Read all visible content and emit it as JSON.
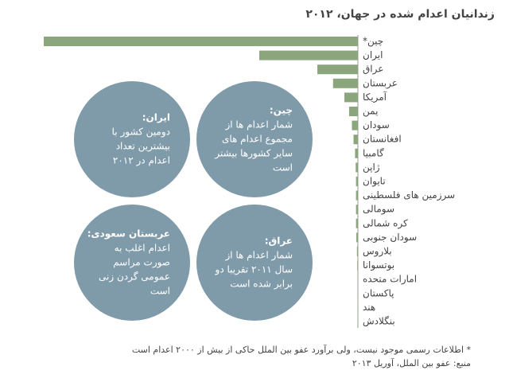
{
  "chart_data": {
    "type": "bar",
    "orientation": "horizontal",
    "title": "زندانیان اعدام شده در جهان، ۲۰۱۲",
    "categories": [
      "چین*",
      "ایران",
      "عراق",
      "عربستان",
      "آمریکا",
      "یمن",
      "سودان",
      "افغانستان",
      "گامبیا",
      "ژاپن",
      "تایوان",
      "سرزمین های فلسطینی",
      "سومالی",
      "کره شمالی",
      "سودان جنوبی",
      "بلاروس",
      "بوتسوانا",
      "امارات متحده",
      "پاکستان",
      "هند",
      "بنگلادش"
    ],
    "values": [
      1000,
      314,
      129,
      79,
      43,
      28,
      19,
      14,
      9,
      7,
      6,
      6,
      6,
      6,
      5,
      3,
      2,
      1,
      1,
      1,
      1
    ],
    "color": "#8ba67c",
    "xlim": [
      0,
      1000
    ],
    "annotations": [
      {
        "title": "ایران:",
        "lines": [
          "دومین کشور با",
          "بیشترین تعداد",
          "اعدام در ۲۰۱۲"
        ]
      },
      {
        "title": "چین:",
        "lines": [
          "شمار اعدام ها از",
          "مجموع اعدام های",
          "سایر کشورها بیشتر",
          "است"
        ]
      },
      {
        "title": "عربستان سعودی:",
        "lines": [
          "اعدام اغلب به",
          "صورت مراسم",
          "عمومی گردن زنی",
          "است"
        ]
      },
      {
        "title": "عراق:",
        "lines": [
          "شمار اعدام ها از",
          "سال ۲۰۱۱ تقریبا دو",
          "برابر شده است"
        ]
      }
    ],
    "annotation_color": "#7f9baa",
    "footnotes": [
      "* اطلاعات رسمی موجود نیست، ولی برآورد عفو بین الملل حاکی از بیش از ۲۰۰۰ اعدام است",
      "منبع: عفو بین الملل، آوریل ۲۰۱۳"
    ]
  }
}
